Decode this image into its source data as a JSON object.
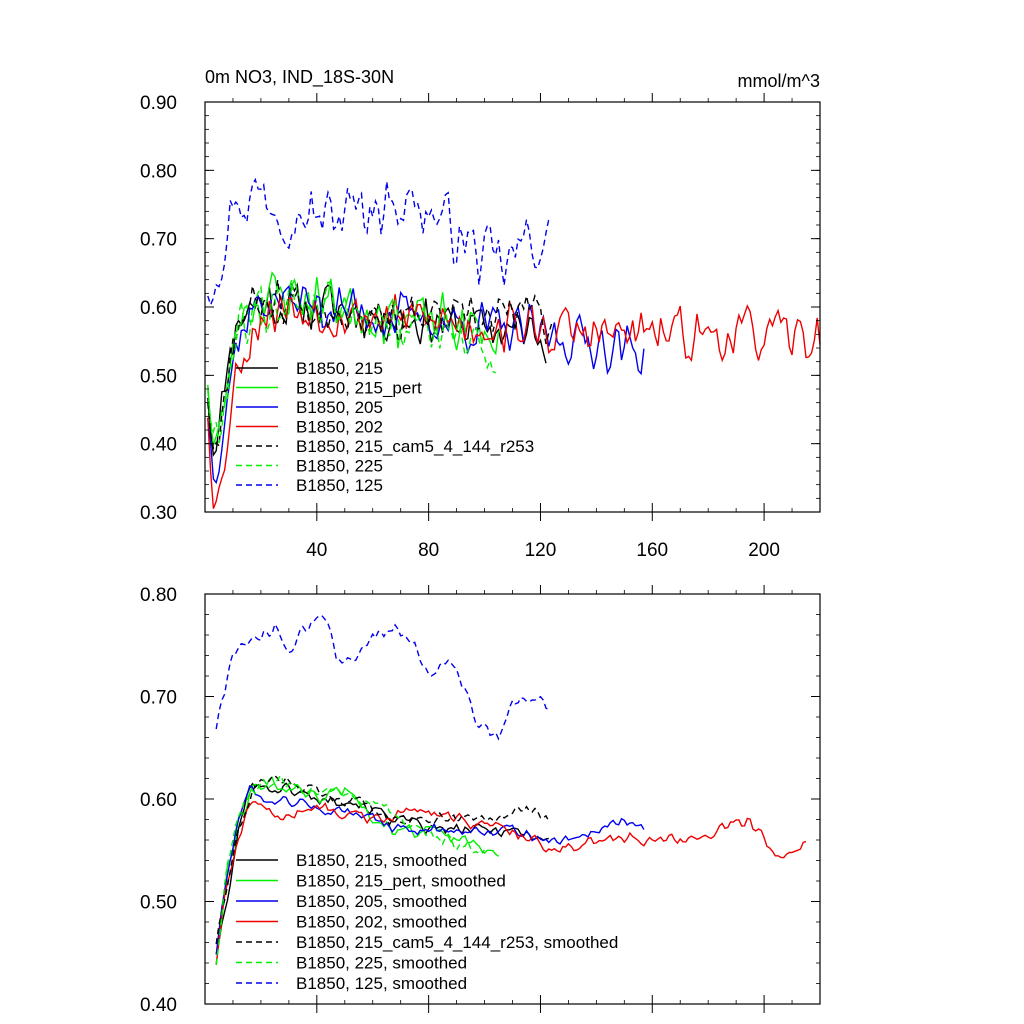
{
  "chart_data": [
    {
      "type": "line",
      "title": "0m NO3, IND_18S-30N",
      "units": "mmol/m^3",
      "xlim": [
        0,
        220
      ],
      "ylim": [
        0.3,
        0.9
      ],
      "x_ticks": [
        40,
        80,
        120,
        160,
        200
      ],
      "x_tick_labels": [
        "40",
        "80",
        "120",
        "160",
        "200"
      ],
      "y_ticks": [
        0.3,
        0.4,
        0.5,
        0.6,
        0.7,
        0.8,
        0.9
      ],
      "y_tick_labels": [
        "0.30",
        "0.40",
        "0.50",
        "0.60",
        "0.70",
        "0.80",
        "0.90"
      ],
      "legend_position": "lower-left",
      "series": [
        {
          "name": "B1850, 215",
          "color": "#000000",
          "dash": "solid",
          "x_start": 1,
          "x_end": 122,
          "anchors": [
            [
              1,
              0.48
            ],
            [
              3,
              0.4
            ],
            [
              6,
              0.45
            ],
            [
              9,
              0.55
            ],
            [
              13,
              0.59
            ],
            [
              20,
              0.61
            ],
            [
              30,
              0.6
            ],
            [
              45,
              0.6
            ],
            [
              60,
              0.59
            ],
            [
              80,
              0.58
            ],
            [
              100,
              0.57
            ],
            [
              122,
              0.56
            ]
          ],
          "noise": 0.045,
          "seed": 11
        },
        {
          "name": "B1850, 215_pert",
          "color": "#00ee00",
          "dash": "solid",
          "x_start": 1,
          "x_end": 106,
          "anchors": [
            [
              1,
              0.5
            ],
            [
              3,
              0.4
            ],
            [
              6,
              0.42
            ],
            [
              9,
              0.52
            ],
            [
              13,
              0.6
            ],
            [
              20,
              0.61
            ],
            [
              30,
              0.62
            ],
            [
              45,
              0.61
            ],
            [
              60,
              0.59
            ],
            [
              80,
              0.58
            ],
            [
              95,
              0.57
            ],
            [
              106,
              0.55
            ]
          ],
          "noise": 0.05,
          "seed": 23
        },
        {
          "name": "B1850, 205",
          "color": "#0000ee",
          "dash": "solid",
          "x_start": 1,
          "x_end": 157,
          "anchors": [
            [
              1,
              0.45
            ],
            [
              3,
              0.36
            ],
            [
              6,
              0.42
            ],
            [
              9,
              0.5
            ],
            [
              13,
              0.57
            ],
            [
              20,
              0.61
            ],
            [
              30,
              0.61
            ],
            [
              45,
              0.6
            ],
            [
              60,
              0.59
            ],
            [
              80,
              0.58
            ],
            [
              100,
              0.57
            ],
            [
              120,
              0.56
            ],
            [
              140,
              0.55
            ],
            [
              157,
              0.53
            ]
          ],
          "noise": 0.045,
          "seed": 37
        },
        {
          "name": "B1850, 202",
          "color": "#ee0000",
          "dash": "solid",
          "x_start": 1,
          "x_end": 220,
          "anchors": [
            [
              1,
              0.45
            ],
            [
              3,
              0.33
            ],
            [
              5,
              0.32
            ],
            [
              8,
              0.42
            ],
            [
              12,
              0.52
            ],
            [
              20,
              0.59
            ],
            [
              30,
              0.6
            ],
            [
              50,
              0.59
            ],
            [
              80,
              0.58
            ],
            [
              110,
              0.57
            ],
            [
              140,
              0.56
            ],
            [
              170,
              0.56
            ],
            [
              200,
              0.56
            ],
            [
              220,
              0.55
            ]
          ],
          "noise": 0.045,
          "seed": 53
        },
        {
          "name": "B1850, 215_cam5_4_144_r253",
          "color": "#000000",
          "dash": "dashed",
          "x_start": 1,
          "x_end": 124,
          "anchors": [
            [
              1,
              0.47
            ],
            [
              3,
              0.39
            ],
            [
              6,
              0.45
            ],
            [
              9,
              0.54
            ],
            [
              13,
              0.59
            ],
            [
              20,
              0.61
            ],
            [
              30,
              0.61
            ],
            [
              45,
              0.6
            ],
            [
              60,
              0.59
            ],
            [
              80,
              0.58
            ],
            [
              100,
              0.58
            ],
            [
              115,
              0.6
            ],
            [
              124,
              0.57
            ]
          ],
          "noise": 0.04,
          "seed": 67
        },
        {
          "name": "B1850, 225",
          "color": "#00ee00",
          "dash": "dashed",
          "x_start": 1,
          "x_end": 104,
          "anchors": [
            [
              1,
              0.49
            ],
            [
              3,
              0.4
            ],
            [
              6,
              0.43
            ],
            [
              9,
              0.52
            ],
            [
              13,
              0.58
            ],
            [
              20,
              0.6
            ],
            [
              30,
              0.61
            ],
            [
              45,
              0.61
            ],
            [
              60,
              0.59
            ],
            [
              80,
              0.57
            ],
            [
              95,
              0.55
            ],
            [
              104,
              0.52
            ]
          ],
          "noise": 0.045,
          "seed": 79
        },
        {
          "name": "B1850, 125",
          "color": "#0000ee",
          "dash": "dashed",
          "x_start": 1,
          "x_end": 123,
          "anchors": [
            [
              1,
              0.63
            ],
            [
              5,
              0.67
            ],
            [
              10,
              0.75
            ],
            [
              20,
              0.77
            ],
            [
              30,
              0.74
            ],
            [
              45,
              0.73
            ],
            [
              60,
              0.75
            ],
            [
              70,
              0.76
            ],
            [
              80,
              0.74
            ],
            [
              90,
              0.71
            ],
            [
              100,
              0.67
            ],
            [
              108,
              0.66
            ],
            [
              116,
              0.7
            ],
            [
              123,
              0.69
            ]
          ],
          "noise": 0.055,
          "seed": 97
        }
      ],
      "legend": [
        "B1850, 215",
        "B1850, 215_pert",
        "B1850, 205",
        "B1850, 202",
        "B1850, 215_cam5_4_144_r253",
        "B1850, 225",
        "B1850, 125"
      ]
    },
    {
      "type": "line",
      "xlim": [
        0,
        220
      ],
      "ylim": [
        0.4,
        0.8
      ],
      "x_ticks": [
        40,
        80,
        120,
        160,
        200
      ],
      "y_ticks": [
        0.4,
        0.5,
        0.6,
        0.7,
        0.8
      ],
      "y_tick_labels": [
        "0.40",
        "0.50",
        "0.60",
        "0.70",
        "0.80"
      ],
      "legend_position": "lower-left",
      "series": [
        {
          "name": "B1850, 215, smoothed",
          "color": "#000000",
          "dash": "solid",
          "x_start": 4,
          "x_end": 123,
          "anchors": [
            [
              4,
              0.45
            ],
            [
              8,
              0.5
            ],
            [
              12,
              0.57
            ],
            [
              17,
              0.62
            ],
            [
              22,
              0.61
            ],
            [
              30,
              0.61
            ],
            [
              40,
              0.6
            ],
            [
              50,
              0.6
            ],
            [
              60,
              0.59
            ],
            [
              70,
              0.58
            ],
            [
              80,
              0.57
            ],
            [
              90,
              0.57
            ],
            [
              100,
              0.57
            ],
            [
              110,
              0.57
            ],
            [
              123,
              0.56
            ]
          ],
          "noise": 0.007,
          "seed": 101
        },
        {
          "name": "B1850, 215_pert, smoothed",
          "color": "#00ee00",
          "dash": "solid",
          "x_start": 4,
          "x_end": 105,
          "anchors": [
            [
              4,
              0.44
            ],
            [
              8,
              0.53
            ],
            [
              12,
              0.58
            ],
            [
              17,
              0.61
            ],
            [
              22,
              0.62
            ],
            [
              30,
              0.61
            ],
            [
              40,
              0.6
            ],
            [
              50,
              0.61
            ],
            [
              60,
              0.58
            ],
            [
              70,
              0.57
            ],
            [
              80,
              0.57
            ],
            [
              90,
              0.56
            ],
            [
              105,
              0.55
            ]
          ],
          "noise": 0.008,
          "seed": 113
        },
        {
          "name": "B1850, 205, smoothed",
          "color": "#0000ee",
          "dash": "solid",
          "x_start": 4,
          "x_end": 157,
          "anchors": [
            [
              4,
              0.45
            ],
            [
              8,
              0.53
            ],
            [
              12,
              0.58
            ],
            [
              16,
              0.61
            ],
            [
              22,
              0.6
            ],
            [
              30,
              0.6
            ],
            [
              40,
              0.59
            ],
            [
              50,
              0.59
            ],
            [
              60,
              0.58
            ],
            [
              70,
              0.57
            ],
            [
              80,
              0.57
            ],
            [
              100,
              0.57
            ],
            [
              110,
              0.57
            ],
            [
              120,
              0.56
            ],
            [
              130,
              0.56
            ],
            [
              140,
              0.57
            ],
            [
              150,
              0.58
            ],
            [
              157,
              0.57
            ]
          ],
          "noise": 0.007,
          "seed": 127
        },
        {
          "name": "B1850, 202, smoothed",
          "color": "#ee0000",
          "dash": "solid",
          "x_start": 4,
          "x_end": 215,
          "anchors": [
            [
              4,
              0.44
            ],
            [
              8,
              0.52
            ],
            [
              12,
              0.56
            ],
            [
              17,
              0.6
            ],
            [
              25,
              0.58
            ],
            [
              35,
              0.59
            ],
            [
              45,
              0.59
            ],
            [
              60,
              0.58
            ],
            [
              75,
              0.59
            ],
            [
              90,
              0.58
            ],
            [
              110,
              0.57
            ],
            [
              125,
              0.55
            ],
            [
              140,
              0.56
            ],
            [
              155,
              0.56
            ],
            [
              165,
              0.56
            ],
            [
              175,
              0.56
            ],
            [
              185,
              0.57
            ],
            [
              195,
              0.58
            ],
            [
              205,
              0.54
            ],
            [
              215,
              0.56
            ]
          ],
          "noise": 0.007,
          "seed": 139
        },
        {
          "name": "B1850, 215_cam5_4_144_r253, smoothed",
          "color": "#000000",
          "dash": "dashed",
          "x_start": 4,
          "x_end": 123,
          "anchors": [
            [
              4,
              0.46
            ],
            [
              8,
              0.52
            ],
            [
              12,
              0.57
            ],
            [
              17,
              0.61
            ],
            [
              25,
              0.62
            ],
            [
              35,
              0.61
            ],
            [
              45,
              0.6
            ],
            [
              55,
              0.6
            ],
            [
              65,
              0.58
            ],
            [
              75,
              0.58
            ],
            [
              85,
              0.58
            ],
            [
              95,
              0.58
            ],
            [
              105,
              0.58
            ],
            [
              115,
              0.59
            ],
            [
              123,
              0.58
            ]
          ],
          "noise": 0.007,
          "seed": 151
        },
        {
          "name": "B1850, 225, smoothed",
          "color": "#00ee00",
          "dash": "dashed",
          "x_start": 4,
          "x_end": 100,
          "anchors": [
            [
              4,
              0.44
            ],
            [
              8,
              0.54
            ],
            [
              12,
              0.58
            ],
            [
              17,
              0.61
            ],
            [
              25,
              0.62
            ],
            [
              35,
              0.61
            ],
            [
              45,
              0.61
            ],
            [
              55,
              0.6
            ],
            [
              65,
              0.59
            ],
            [
              75,
              0.57
            ],
            [
              85,
              0.56
            ],
            [
              100,
              0.55
            ]
          ],
          "noise": 0.008,
          "seed": 163
        },
        {
          "name": "B1850, 125, smoothed",
          "color": "#0000ee",
          "dash": "dashed",
          "x_start": 4,
          "x_end": 123,
          "anchors": [
            [
              4,
              0.67
            ],
            [
              8,
              0.72
            ],
            [
              12,
              0.75
            ],
            [
              20,
              0.76
            ],
            [
              25,
              0.77
            ],
            [
              30,
              0.74
            ],
            [
              37,
              0.77
            ],
            [
              42,
              0.78
            ],
            [
              47,
              0.74
            ],
            [
              53,
              0.73
            ],
            [
              60,
              0.76
            ],
            [
              68,
              0.77
            ],
            [
              73,
              0.76
            ],
            [
              80,
              0.72
            ],
            [
              87,
              0.74
            ],
            [
              93,
              0.71
            ],
            [
              98,
              0.67
            ],
            [
              105,
              0.66
            ],
            [
              110,
              0.69
            ],
            [
              116,
              0.7
            ],
            [
              123,
              0.69
            ]
          ],
          "noise": 0.008,
          "seed": 173
        }
      ],
      "legend": [
        "B1850, 215, smoothed",
        "B1850, 215_pert, smoothed",
        "B1850, 205, smoothed",
        "B1850, 202, smoothed",
        "B1850, 215_cam5_4_144_r253, smoothed",
        "B1850, 225, smoothed",
        "B1850, 125, smoothed"
      ]
    }
  ]
}
